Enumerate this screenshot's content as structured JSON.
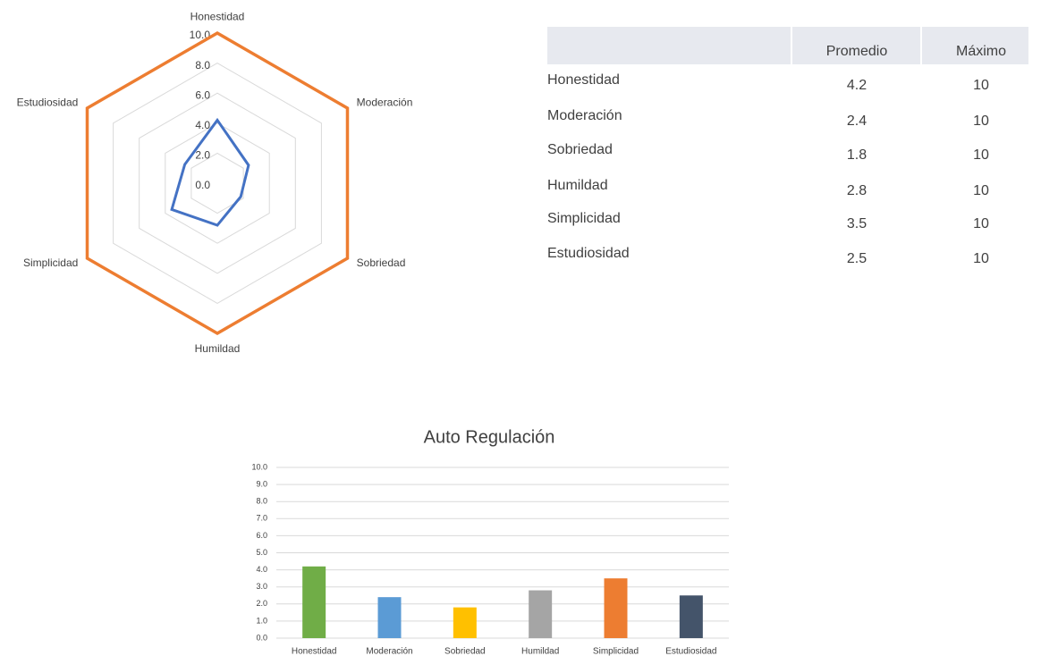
{
  "chart_data": [
    {
      "type": "radar",
      "categories": [
        "Honestidad",
        "Moderación",
        "Sobriedad",
        "Humildad",
        "Simplicidad",
        "Estudiosidad"
      ],
      "series": [
        {
          "color": "#4472c4",
          "values": [
            4.2,
            2.4,
            1.8,
            2.8,
            3.5,
            2.5
          ]
        },
        {
          "color": "#ed7d31",
          "values": [
            10,
            10,
            10,
            10,
            10,
            10
          ]
        }
      ],
      "ylim": [
        0,
        10
      ],
      "yticks": [
        {
          "value": 0,
          "label": "0.0"
        },
        {
          "value": 2,
          "label": "2.0"
        },
        {
          "value": 4,
          "label": "4.0"
        },
        {
          "value": 6,
          "label": "6.0"
        },
        {
          "value": 8,
          "label": "8.0"
        },
        {
          "value": 10,
          "label": "10.0"
        }
      ],
      "grid": true
    },
    {
      "type": "bar",
      "title": "Auto Regulación",
      "categories": [
        "Honestidad",
        "Moderación",
        "Sobriedad",
        "Humildad",
        "Simplicidad",
        "Estudiosidad"
      ],
      "values": [
        4.2,
        2.4,
        1.8,
        2.8,
        3.5,
        2.5
      ],
      "colors": [
        "#70ad47",
        "#5b9bd5",
        "#ffc000",
        "#a5a5a5",
        "#ed7d31",
        "#44546a"
      ],
      "ylim": [
        0,
        10
      ],
      "yticks": [
        {
          "value": 0,
          "label": "0.0"
        },
        {
          "value": 1,
          "label": "1.0"
        },
        {
          "value": 2,
          "label": "2.0"
        },
        {
          "value": 3,
          "label": "3.0"
        },
        {
          "value": 4,
          "label": "4.0"
        },
        {
          "value": 5,
          "label": "5.0"
        },
        {
          "value": 6,
          "label": "6.0"
        },
        {
          "value": 7,
          "label": "7.0"
        },
        {
          "value": 8,
          "label": "8.0"
        },
        {
          "value": 9,
          "label": "9.0"
        },
        {
          "value": 10,
          "label": "10.0"
        }
      ],
      "grid": true
    }
  ],
  "table": {
    "columns": [
      "Promedio",
      "Máximo"
    ],
    "rows": [
      [
        "Honestidad",
        4.2,
        10
      ],
      [
        "Moderación",
        2.4,
        10
      ],
      [
        "Sobriedad",
        1.8,
        10
      ],
      [
        "Humildad",
        2.8,
        10
      ],
      [
        "Simplicidad",
        3.5,
        10
      ],
      [
        "Estudiosidad",
        2.5,
        10
      ]
    ]
  }
}
